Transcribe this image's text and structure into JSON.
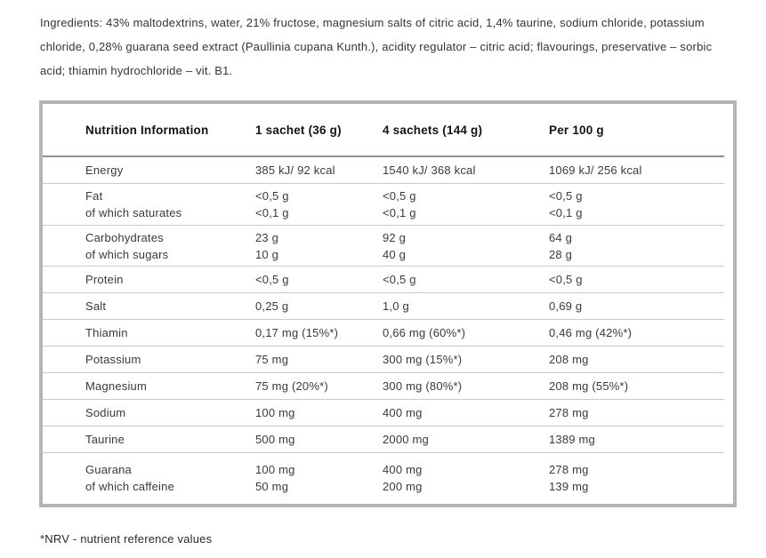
{
  "ingredients_text": "Ingredients: 43% maltodextrins, water, 21% fructose, magnesium salts of citric acid, 1,4% taurine, sodium chloride, potassium chloride, 0,28% guarana seed extract (Paullinia cupana Kunth.), acidity regulator – citric acid; flavourings, preservative – sorbic acid; thiamin hydrochloride – vit. B1.",
  "footnote": "*NRV - nutrient reference values",
  "colors": {
    "table_border": "#b5b5b5",
    "header_separator": "#919191",
    "row_separator": "#cbcbcb",
    "body_text": "#3a3a3a"
  },
  "table": {
    "headers": [
      "Nutrition Information",
      "1 sachet (36 g)",
      "4 sachets (144 g)",
      "Per 100 g"
    ],
    "rows": [
      {
        "cells": [
          [
            "Energy"
          ],
          [
            "385 kJ/ 92 kcal"
          ],
          [
            "1540 kJ/ 368 kcal"
          ],
          [
            "1069 kJ/ 256 kcal"
          ]
        ]
      },
      {
        "cells": [
          [
            "Fat",
            "of which saturates"
          ],
          [
            "<0,5 g",
            "<0,1 g"
          ],
          [
            "<0,5 g",
            "<0,1 g"
          ],
          [
            "<0,5 g",
            "<0,1 g"
          ]
        ]
      },
      {
        "cells": [
          [
            "Carbohydrates",
            "of which sugars"
          ],
          [
            "23 g",
            "10 g"
          ],
          [
            "92 g",
            "40 g"
          ],
          [
            "64 g",
            "28 g"
          ]
        ]
      },
      {
        "cells": [
          [
            "Protein"
          ],
          [
            "<0,5 g"
          ],
          [
            "<0,5 g"
          ],
          [
            "<0,5 g"
          ]
        ]
      },
      {
        "cells": [
          [
            "Salt"
          ],
          [
            "0,25 g"
          ],
          [
            "1,0 g"
          ],
          [
            "0,69 g"
          ]
        ]
      },
      {
        "cells": [
          [
            "Thiamin"
          ],
          [
            "0,17 mg (15%*)"
          ],
          [
            "0,66 mg (60%*)"
          ],
          [
            "0,46 mg (42%*)"
          ]
        ]
      },
      {
        "cells": [
          [
            "Potassium"
          ],
          [
            "75 mg"
          ],
          [
            "300 mg (15%*)"
          ],
          [
            "208 mg"
          ]
        ]
      },
      {
        "cells": [
          [
            "Magnesium"
          ],
          [
            "75 mg (20%*)"
          ],
          [
            "300 mg (80%*)"
          ],
          [
            "208 mg (55%*)"
          ]
        ]
      },
      {
        "cells": [
          [
            "Sodium"
          ],
          [
            "100 mg"
          ],
          [
            "400 mg"
          ],
          [
            "278 mg"
          ]
        ]
      },
      {
        "cells": [
          [
            "Taurine"
          ],
          [
            "500 mg"
          ],
          [
            "2000 mg"
          ],
          [
            "1389 mg"
          ]
        ]
      },
      {
        "cells": [
          [
            "Guarana",
            "of which caffeine"
          ],
          [
            "100 mg",
            "50 mg"
          ],
          [
            "400 mg",
            "200 mg"
          ],
          [
            "278 mg",
            "139 mg"
          ]
        ]
      }
    ]
  }
}
